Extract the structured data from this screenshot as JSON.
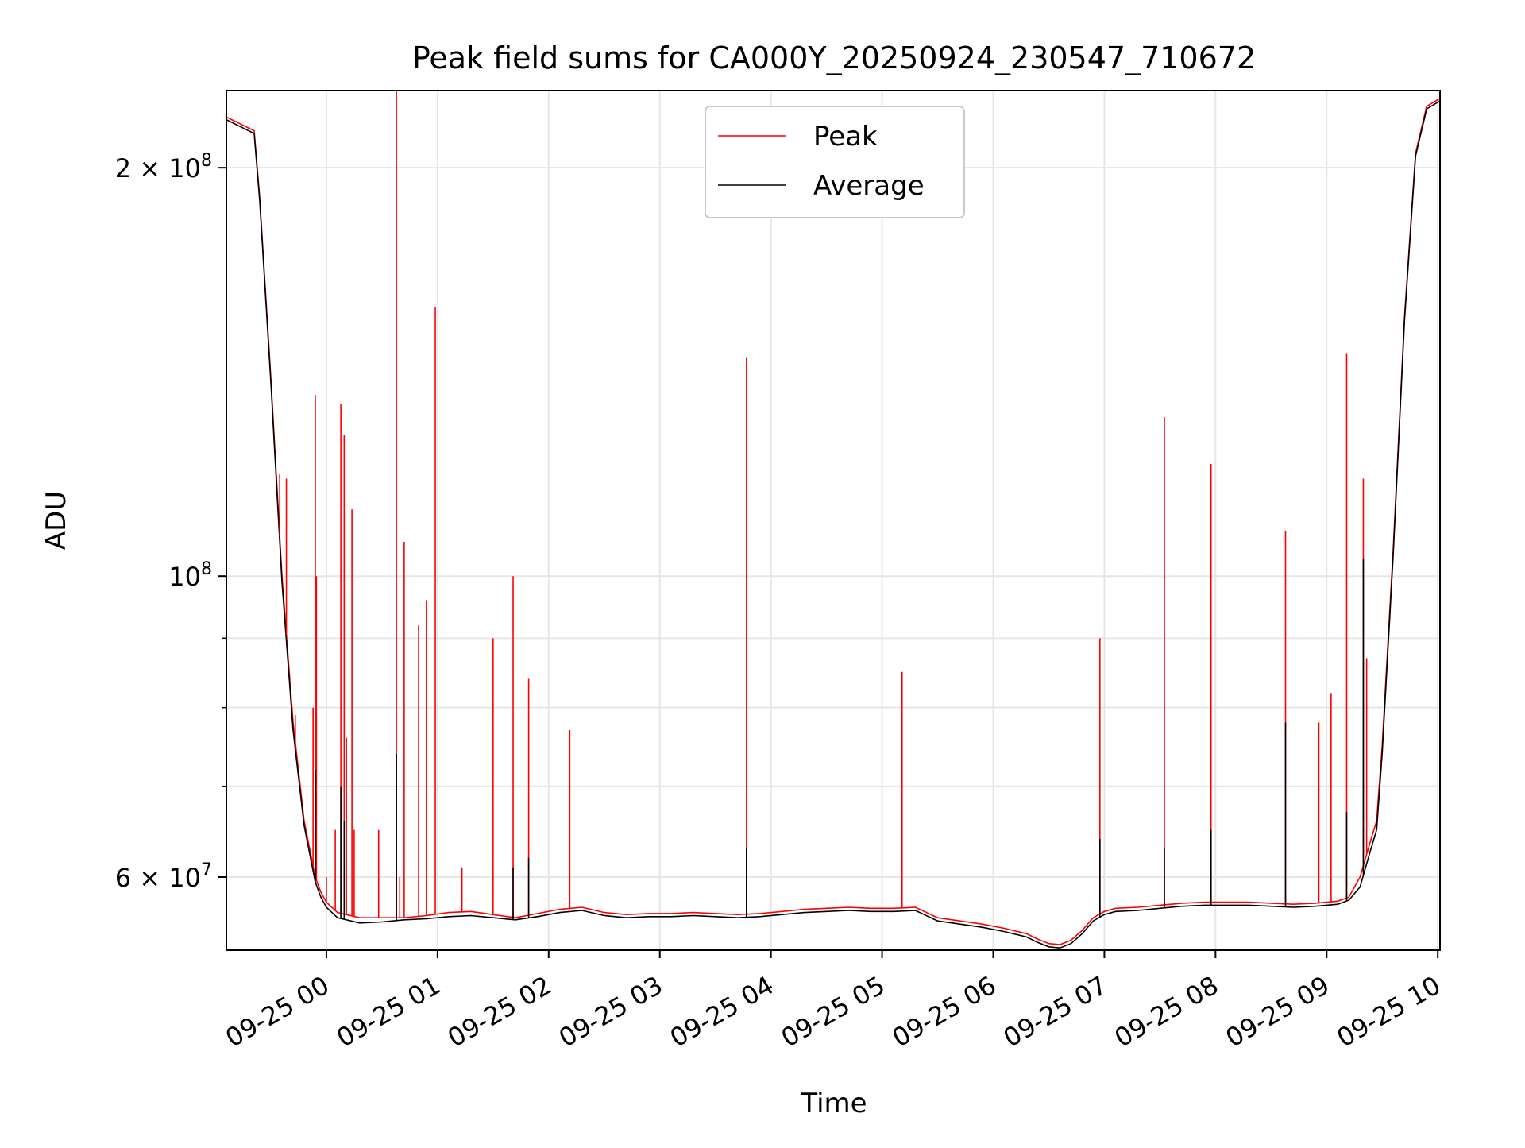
{
  "chart_data": {
    "type": "line",
    "title": "Peak field sums for CA000Y_20250924_230547_710672",
    "xlabel": "Time",
    "ylabel": "ADU",
    "yscale": "log",
    "x_units": "hours since 2025-09-24 23:05:47",
    "xlim": [
      0,
      10.92
    ],
    "ylim": [
      53000000,
      228000000
    ],
    "x_ticks": [
      {
        "x": 0.9,
        "label": "09-25 00"
      },
      {
        "x": 1.9,
        "label": "09-25 01"
      },
      {
        "x": 2.9,
        "label": "09-25 02"
      },
      {
        "x": 3.9,
        "label": "09-25 03"
      },
      {
        "x": 4.9,
        "label": "09-25 04"
      },
      {
        "x": 5.9,
        "label": "09-25 05"
      },
      {
        "x": 6.9,
        "label": "09-25 06"
      },
      {
        "x": 7.9,
        "label": "09-25 07"
      },
      {
        "x": 8.9,
        "label": "09-25 08"
      },
      {
        "x": 9.9,
        "label": "09-25 09"
      },
      {
        "x": 10.9,
        "label": "09-25 10"
      }
    ],
    "y_ticks": [
      {
        "y": 60000000,
        "base": "6 × 10",
        "exp": "7"
      },
      {
        "y": 100000000,
        "base": "10",
        "exp": "8"
      },
      {
        "y": 200000000,
        "base": "2 × 10",
        "exp": "8"
      }
    ],
    "y_minor_ticks": [
      70000000,
      80000000,
      90000000
    ],
    "grid": true,
    "legend": {
      "position": "upper-center",
      "entries": [
        {
          "name": "Peak",
          "color": "#ff0000"
        },
        {
          "name": "Average",
          "color": "#000000"
        }
      ]
    },
    "series": [
      {
        "name": "Peak",
        "color": "#ff0000",
        "x": [
          0.0,
          0.25,
          0.3,
          0.4,
          0.5,
          0.6,
          0.7,
          0.8,
          0.85,
          0.9,
          1.0,
          1.2,
          1.4,
          1.6,
          1.8,
          2.0,
          2.2,
          2.4,
          2.6,
          2.8,
          3.0,
          3.2,
          3.4,
          3.6,
          3.8,
          4.0,
          4.2,
          4.4,
          4.6,
          4.8,
          5.0,
          5.2,
          5.4,
          5.6,
          5.8,
          6.0,
          6.2,
          6.4,
          6.6,
          6.8,
          7.0,
          7.2,
          7.3,
          7.4,
          7.5,
          7.6,
          7.7,
          7.8,
          7.9,
          8.0,
          8.2,
          8.4,
          8.6,
          8.8,
          9.0,
          9.2,
          9.4,
          9.6,
          9.8,
          10.0,
          10.1,
          10.2,
          10.3,
          10.35,
          10.4,
          10.5,
          10.6,
          10.7,
          10.8,
          10.92
        ],
        "y": [
          218000000,
          213000000,
          190000000,
          140000000,
          100000000,
          78000000,
          66000000,
          60000000,
          58500000,
          57500000,
          56500000,
          56000000,
          56000000,
          56000000,
          56200000,
          56500000,
          56600000,
          56300000,
          56000000,
          56400000,
          56800000,
          57000000,
          56500000,
          56300000,
          56400000,
          56400000,
          56500000,
          56400000,
          56300000,
          56400000,
          56600000,
          56800000,
          56900000,
          57000000,
          56900000,
          56900000,
          57000000,
          56000000,
          55700000,
          55400000,
          55000000,
          54500000,
          54000000,
          53600000,
          53500000,
          53900000,
          54800000,
          56000000,
          56600000,
          56900000,
          57000000,
          57200000,
          57400000,
          57500000,
          57500000,
          57500000,
          57400000,
          57300000,
          57400000,
          57600000,
          58000000,
          60000000,
          64000000,
          66000000,
          75000000,
          105000000,
          155000000,
          205000000,
          222000000,
          225000000
        ]
      },
      {
        "name": "Average",
        "color": "#000000",
        "x": [
          0.0,
          0.25,
          0.3,
          0.4,
          0.5,
          0.6,
          0.7,
          0.8,
          0.85,
          0.9,
          1.0,
          1.2,
          1.4,
          1.6,
          1.8,
          2.0,
          2.2,
          2.4,
          2.6,
          2.8,
          3.0,
          3.2,
          3.4,
          3.6,
          3.8,
          4.0,
          4.2,
          4.4,
          4.6,
          4.8,
          5.0,
          5.2,
          5.4,
          5.6,
          5.8,
          6.0,
          6.2,
          6.4,
          6.6,
          6.8,
          7.0,
          7.2,
          7.3,
          7.4,
          7.5,
          7.6,
          7.7,
          7.8,
          7.9,
          8.0,
          8.2,
          8.4,
          8.6,
          8.8,
          9.0,
          9.2,
          9.4,
          9.6,
          9.8,
          10.0,
          10.1,
          10.2,
          10.3,
          10.35,
          10.4,
          10.5,
          10.6,
          10.7,
          10.8,
          10.92
        ],
        "y": [
          217000000,
          212000000,
          189000000,
          139000000,
          99000000,
          77000000,
          65500000,
          59500000,
          58000000,
          57000000,
          56000000,
          55500000,
          55600000,
          55800000,
          55900000,
          56100000,
          56200000,
          56000000,
          55800000,
          56100000,
          56500000,
          56700000,
          56200000,
          56000000,
          56100000,
          56100000,
          56200000,
          56100000,
          56000000,
          56100000,
          56300000,
          56500000,
          56600000,
          56700000,
          56600000,
          56600000,
          56700000,
          55700000,
          55400000,
          55100000,
          54700000,
          54200000,
          53700000,
          53300000,
          53200000,
          53600000,
          54500000,
          55700000,
          56300000,
          56600000,
          56700000,
          56900000,
          57100000,
          57200000,
          57200000,
          57200000,
          57100000,
          57000000,
          57100000,
          57300000,
          57700000,
          59000000,
          63000000,
          65000000,
          74000000,
          104000000,
          154000000,
          204000000,
          221000000,
          224000000
        ]
      }
    ],
    "peak_spikes": [
      {
        "x": 0.48,
        "y": 119000000
      },
      {
        "x": 0.54,
        "y": 118000000
      },
      {
        "x": 0.62,
        "y": 79000000
      },
      {
        "x": 0.78,
        "y": 80000000
      },
      {
        "x": 0.8,
        "y": 136000000
      },
      {
        "x": 0.81,
        "y": 100000000
      },
      {
        "x": 0.9,
        "y": 60000000
      },
      {
        "x": 0.98,
        "y": 65000000
      },
      {
        "x": 1.03,
        "y": 134000000
      },
      {
        "x": 1.06,
        "y": 127000000
      },
      {
        "x": 1.08,
        "y": 76000000
      },
      {
        "x": 1.13,
        "y": 112000000
      },
      {
        "x": 1.15,
        "y": 65000000
      },
      {
        "x": 1.37,
        "y": 65000000
      },
      {
        "x": 1.53,
        "y": 228000000
      },
      {
        "x": 1.56,
        "y": 60000000
      },
      {
        "x": 1.6,
        "y": 106000000
      },
      {
        "x": 1.73,
        "y": 92000000
      },
      {
        "x": 1.8,
        "y": 96000000
      },
      {
        "x": 1.88,
        "y": 158000000
      },
      {
        "x": 2.12,
        "y": 61000000
      },
      {
        "x": 2.4,
        "y": 90000000
      },
      {
        "x": 2.58,
        "y": 100000000
      },
      {
        "x": 2.72,
        "y": 84000000
      },
      {
        "x": 3.09,
        "y": 77000000
      },
      {
        "x": 4.68,
        "y": 145000000
      },
      {
        "x": 6.08,
        "y": 85000000
      },
      {
        "x": 7.86,
        "y": 90000000
      },
      {
        "x": 8.44,
        "y": 131000000
      },
      {
        "x": 8.86,
        "y": 121000000
      },
      {
        "x": 9.53,
        "y": 108000000
      },
      {
        "x": 9.83,
        "y": 78000000
      },
      {
        "x": 9.94,
        "y": 82000000
      },
      {
        "x": 10.08,
        "y": 146000000
      },
      {
        "x": 10.23,
        "y": 118000000
      },
      {
        "x": 10.26,
        "y": 87000000
      }
    ],
    "average_spikes": [
      {
        "x": 0.8,
        "y": 72000000
      },
      {
        "x": 1.03,
        "y": 70000000
      },
      {
        "x": 1.06,
        "y": 66000000
      },
      {
        "x": 1.53,
        "y": 74000000
      },
      {
        "x": 2.58,
        "y": 61000000
      },
      {
        "x": 2.72,
        "y": 62000000
      },
      {
        "x": 4.68,
        "y": 63000000
      },
      {
        "x": 7.86,
        "y": 64000000
      },
      {
        "x": 8.44,
        "y": 63000000
      },
      {
        "x": 8.86,
        "y": 65000000
      },
      {
        "x": 9.53,
        "y": 78000000
      },
      {
        "x": 10.08,
        "y": 67000000
      },
      {
        "x": 10.23,
        "y": 103000000
      }
    ]
  }
}
